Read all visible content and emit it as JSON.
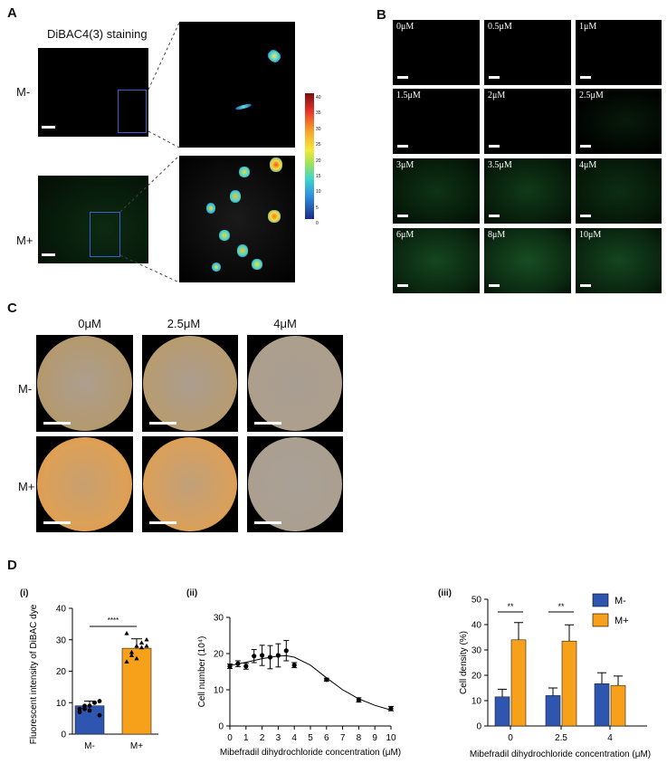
{
  "panels": {
    "a": "A",
    "b": "B",
    "c": "C",
    "d": "D"
  },
  "panel_a": {
    "title": "DiBAC4(3) staining",
    "rows": [
      "M-",
      "M+"
    ],
    "colorbar_ticks": [
      "40",
      "35",
      "30",
      "25",
      "20",
      "15",
      "10",
      "5",
      "0"
    ]
  },
  "panel_b": {
    "labels": [
      "0μM",
      "0.5μM",
      "1μM",
      "1.5μM",
      "2μM",
      "2.5μM",
      "3μM",
      "3.5μM",
      "4μM",
      "6μM",
      "8μM",
      "10μM"
    ]
  },
  "panel_c": {
    "columns": [
      "0μM",
      "2.5μM",
      "4μM"
    ],
    "rows": [
      "M-",
      "M+"
    ]
  },
  "panel_d": {
    "sub_labels": [
      "(i)",
      "(ii)",
      "(iii)"
    ]
  },
  "chart_data": [
    {
      "type": "bar",
      "categories": [
        "M-",
        "M+"
      ],
      "values": [
        9,
        27.3
      ],
      "errors": [
        1.5,
        3
      ],
      "colors": [
        "#2e56b0",
        "#f7a11a"
      ],
      "points": [
        [
          7,
          8,
          9,
          10,
          10.5,
          8,
          9,
          7.5,
          10,
          6
        ],
        [
          23,
          25,
          28,
          29,
          30,
          32,
          26,
          24,
          27.5,
          28
        ]
      ],
      "significance": "****",
      "ylabel": "Fluorescent intensity of DiBAC dye",
      "ylim": [
        0,
        40
      ],
      "yticks": [
        "0",
        "10",
        "20",
        "30",
        "40"
      ]
    },
    {
      "type": "line",
      "x": [
        0,
        0.5,
        1,
        1.5,
        2,
        2.5,
        3,
        3.5,
        4,
        6,
        8,
        10
      ],
      "y": [
        16.5,
        17.2,
        16.5,
        19.3,
        19.5,
        19,
        19.5,
        20.8,
        16.8,
        12.8,
        7.2,
        4.8
      ],
      "errors": [
        0.6,
        0.8,
        0.8,
        1.8,
        2.8,
        3.2,
        3.2,
        2.8,
        0.7,
        0.4,
        0.6,
        0.6
      ],
      "fit": [
        [
          0,
          16.7
        ],
        [
          1,
          17.6
        ],
        [
          2,
          18.6
        ],
        [
          3,
          19.3
        ],
        [
          3.5,
          19.4
        ],
        [
          4,
          19
        ],
        [
          5,
          16.8
        ],
        [
          6,
          13.3
        ],
        [
          7,
          10
        ],
        [
          8,
          7.5
        ],
        [
          9,
          5.7
        ],
        [
          10,
          4.4
        ]
      ],
      "xlabel": "Mibefradil dihydrochloride concentration (μM)",
      "ylabel": "Cell number (10⁴)",
      "xlim": [
        0,
        10
      ],
      "ylim": [
        0,
        30
      ],
      "xticks": [
        "0",
        "1",
        "2",
        "3",
        "4",
        "5",
        "6",
        "7",
        "8",
        "9",
        "10"
      ],
      "yticks": [
        "0",
        "10",
        "20",
        "30"
      ]
    },
    {
      "type": "bar",
      "categories": [
        "0",
        "2.5",
        "4"
      ],
      "series": [
        {
          "name": "M-",
          "values": [
            11.5,
            12,
            16.7
          ],
          "errors": [
            3,
            3,
            4.3
          ],
          "color": "#2e56b0"
        },
        {
          "name": "M+",
          "values": [
            34,
            33.5,
            16
          ],
          "errors": [
            6.8,
            6.4,
            3.7
          ],
          "color": "#f7a11a"
        }
      ],
      "significance": [
        "**",
        "**"
      ],
      "xlabel": "Mibefradil dihydrochloride concentration (μM)",
      "ylabel": "Cell density (%)",
      "ylim": [
        0,
        50
      ],
      "yticks": [
        "0",
        "10",
        "20",
        "30",
        "40",
        "50"
      ],
      "legend": "top-right"
    }
  ]
}
